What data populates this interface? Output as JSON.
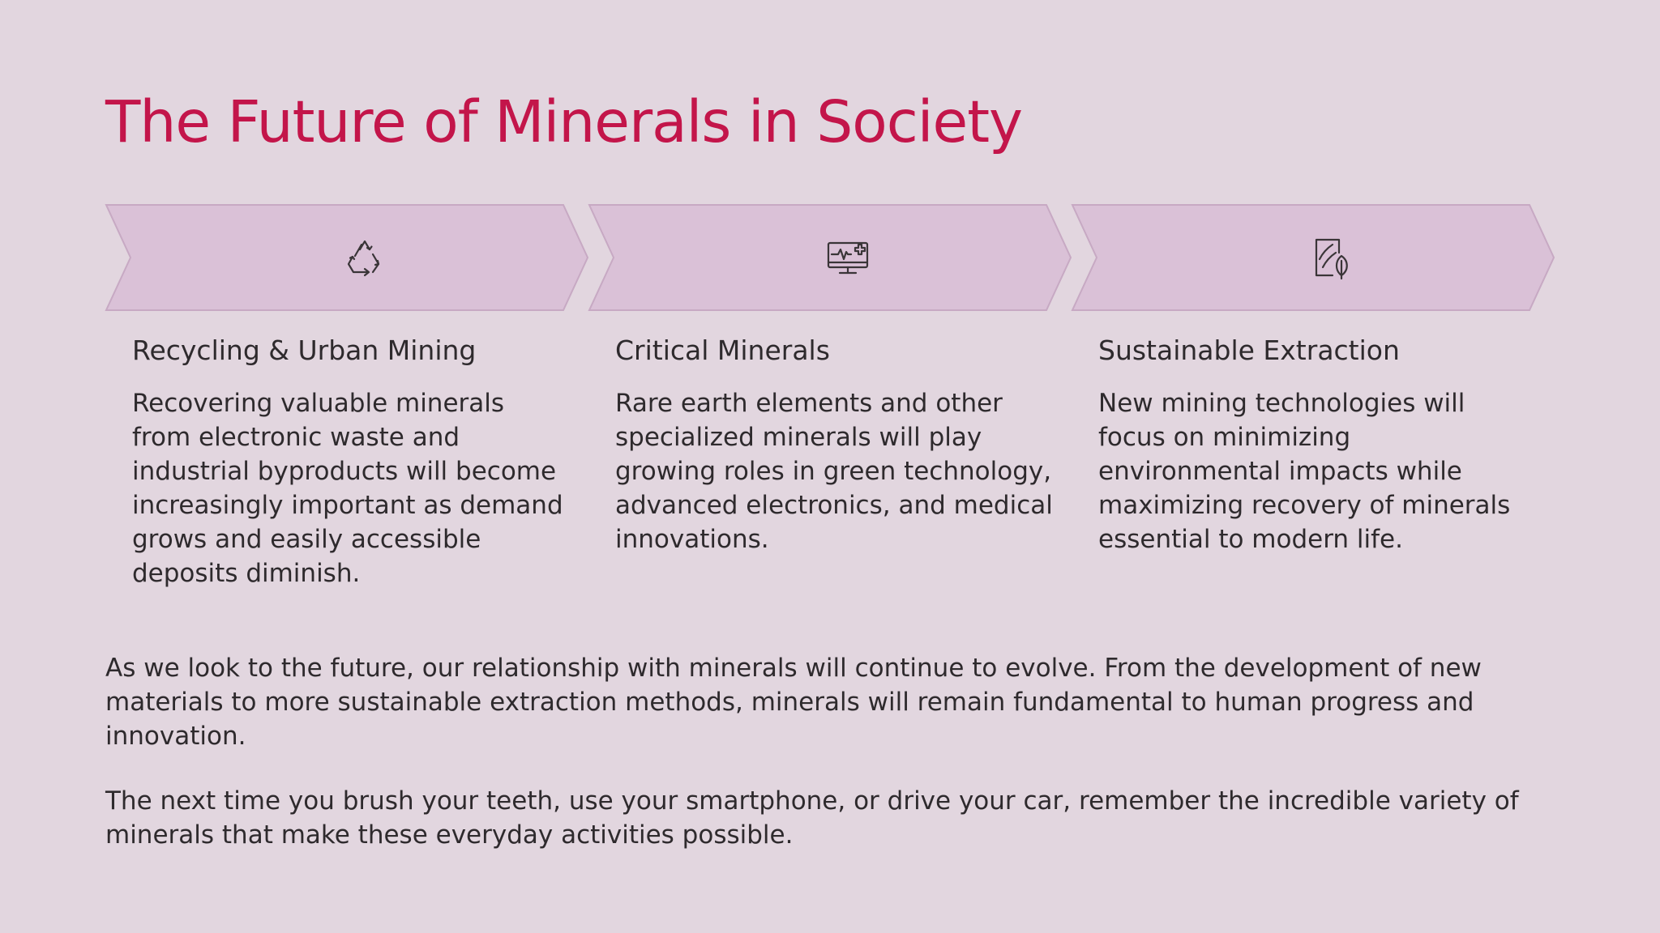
{
  "title": "The Future of Minerals in Society",
  "colors": {
    "title": "#c3154a",
    "background": "#e2d6df",
    "chevron_fill": "#dac1d7",
    "chevron_stroke": "#c7a9c3",
    "text": "#2e2a2d"
  },
  "columns": [
    {
      "icon": "recycle-icon",
      "heading": "Recycling & Urban Mining",
      "text": "Recovering valuable minerals from electronic waste and industrial byproducts will become increasingly important as demand grows and easily accessible deposits diminish."
    },
    {
      "icon": "medical-monitor-icon",
      "heading": "Critical Minerals",
      "text": "Rare earth elements and other specialized minerals will play growing roles in green technology, advanced electronics, and medical innovations."
    },
    {
      "icon": "eco-leaf-document-icon",
      "heading": "Sustainable Extraction",
      "text": "New mining technologies will focus on minimizing environmental impacts while maximizing recovery of minerals essential to modern life."
    }
  ],
  "paragraphs": [
    "As we look to the future, our relationship with minerals will continue to evolve. From the development of new materials to more sustainable extraction methods, minerals will remain fundamental to human progress and innovation.",
    "The next time you brush your teeth, use your smartphone, or drive your car, remember the incredible variety of minerals that make these everyday activities possible."
  ]
}
